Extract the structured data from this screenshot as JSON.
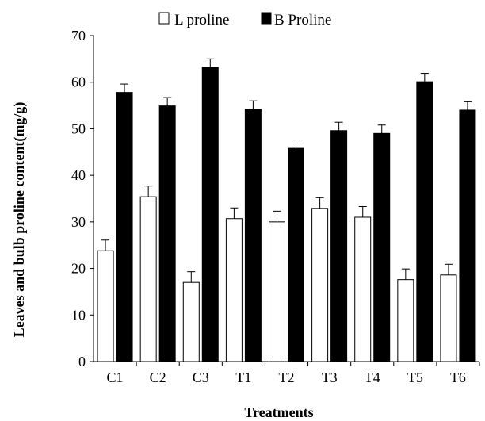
{
  "chart_data": {
    "type": "bar",
    "xlabel": "Treatments",
    "ylabel": "Leaves and bulb proline content(mg/g)",
    "ylim": [
      0,
      70
    ],
    "yticks": [
      0,
      10,
      20,
      30,
      40,
      50,
      60,
      70
    ],
    "categories": [
      "C1",
      "C2",
      "C3",
      "T1",
      "T2",
      "T3",
      "T4",
      "T5",
      "T6"
    ],
    "series": [
      {
        "name": "L proline",
        "color": "#ffffff",
        "values": [
          23.8,
          35.4,
          17.0,
          30.7,
          30.0,
          32.9,
          31.0,
          17.6,
          18.6
        ],
        "errors": [
          2.3,
          2.3,
          2.3,
          2.3,
          2.3,
          2.3,
          2.3,
          2.3,
          2.3
        ]
      },
      {
        "name": "B Proline",
        "color": "#000000",
        "values": [
          57.8,
          54.9,
          63.2,
          54.2,
          45.8,
          49.6,
          49.0,
          60.1,
          54.0
        ],
        "errors": [
          1.8,
          1.8,
          1.8,
          1.8,
          1.8,
          1.8,
          1.8,
          1.8,
          1.8
        ]
      }
    ],
    "legend_position": "top",
    "grid": false
  }
}
